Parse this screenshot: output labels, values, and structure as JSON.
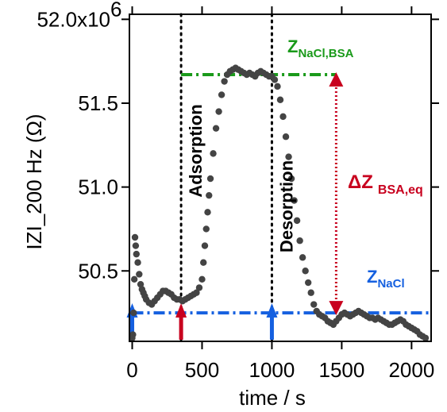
{
  "chart_data": {
    "type": "scatter",
    "title": "",
    "xlabel": "time / s",
    "ylabel": "IZI_200 Hz  (Ω)",
    "xlim": [
      -20,
      2140
    ],
    "ylim": [
      50.08,
      52.03
    ],
    "x_ticks": [
      0,
      500,
      1000,
      1500,
      2000
    ],
    "x_tick_labels": [
      "0",
      "500",
      "1000",
      "1500",
      "2000"
    ],
    "y_ticks": [
      50.5,
      51.0,
      51.5,
      52.0
    ],
    "y_tick_labels": [
      "50.5",
      "51.0",
      "51.5",
      "52.0x10"
    ],
    "y_exponent": "6",
    "grid": false,
    "marker_color": "#444444",
    "series": [
      {
        "x": [
          0,
          5,
          10,
          15,
          20,
          25,
          30,
          40,
          50,
          60,
          70,
          80,
          90,
          100,
          120,
          140,
          160,
          180,
          200,
          220,
          240,
          260,
          280,
          300,
          320,
          340,
          360,
          380,
          400,
          420,
          440,
          460,
          480,
          500,
          510,
          520,
          530,
          540,
          550,
          560,
          580,
          600,
          620,
          640,
          660,
          680,
          700,
          720,
          740,
          760,
          780,
          800,
          820,
          840,
          860,
          880,
          900,
          920,
          940,
          960,
          980,
          1000,
          1020,
          1040,
          1060,
          1080,
          1100,
          1120,
          1140,
          1160,
          1180,
          1200,
          1220,
          1240,
          1260,
          1280,
          1300,
          1320,
          1340,
          1360,
          1380,
          1400,
          1420,
          1440,
          1460,
          1480,
          1500,
          1520,
          1540,
          1560,
          1580,
          1600,
          1620,
          1640,
          1660,
          1680,
          1700,
          1720,
          1740,
          1760,
          1780,
          1800,
          1820,
          1840,
          1860,
          1880,
          1900,
          1920,
          1940,
          1960,
          1980,
          2000,
          2020,
          2040,
          2060,
          2080,
          2100
        ],
        "y": [
          50.1,
          50.12,
          50.25,
          50.45,
          50.7,
          50.65,
          50.6,
          50.55,
          50.48,
          50.42,
          50.39,
          50.37,
          50.35,
          50.33,
          50.31,
          50.3,
          50.32,
          50.34,
          50.36,
          50.38,
          50.38,
          50.37,
          50.36,
          50.34,
          50.33,
          50.33,
          50.32,
          50.33,
          50.34,
          50.35,
          50.36,
          50.37,
          50.4,
          50.45,
          50.55,
          50.65,
          50.75,
          50.85,
          50.95,
          51.05,
          51.2,
          51.35,
          51.45,
          51.55,
          51.63,
          51.67,
          51.69,
          51.7,
          51.71,
          51.7,
          51.69,
          51.68,
          51.67,
          51.68,
          51.67,
          51.66,
          51.68,
          51.69,
          51.68,
          51.67,
          51.66,
          51.66,
          51.64,
          51.6,
          51.52,
          51.42,
          51.3,
          51.18,
          51.05,
          50.92,
          50.8,
          50.68,
          50.58,
          50.5,
          50.43,
          50.37,
          50.3,
          50.26,
          50.24,
          50.23,
          50.22,
          50.2,
          50.19,
          50.18,
          50.2,
          50.22,
          50.24,
          50.25,
          50.24,
          50.23,
          50.24,
          50.25,
          50.26,
          50.25,
          50.24,
          50.23,
          50.22,
          50.22,
          50.21,
          50.22,
          50.21,
          50.2,
          50.19,
          50.18,
          50.18,
          50.19,
          50.2,
          50.21,
          50.2,
          50.18,
          50.17,
          50.16,
          50.15,
          50.14,
          50.12,
          50.11,
          50.1
        ]
      }
    ],
    "vlines": [
      350,
      1000
    ],
    "vline_labels": [
      "Adsorption",
      "Desorption"
    ],
    "hlines": [
      {
        "y": 51.67,
        "x0": 350,
        "x1": 1460,
        "label": "Z",
        "sub": "NaCl,BSA",
        "color": "#1a9a1a"
      },
      {
        "y": 50.25,
        "x0": 0,
        "x1": 2140,
        "label": "Z",
        "sub": "NaCl",
        "color": "#1560e0"
      }
    ],
    "delta": {
      "label": "ΔZ",
      "sub": "BSA,eq",
      "x": 1460,
      "y0": 50.25,
      "y1": 51.67,
      "color": "#c8001e"
    },
    "arrows": [
      {
        "x": 0,
        "color": "#1560e0"
      },
      {
        "x": 350,
        "color": "#c8001e"
      },
      {
        "x": 1000,
        "color": "#1560e0"
      }
    ]
  }
}
